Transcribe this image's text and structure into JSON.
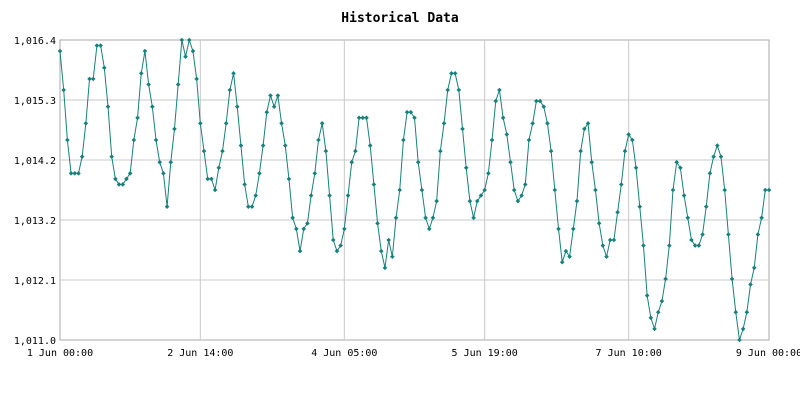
{
  "chart_data": {
    "type": "line",
    "title": "Historical Data",
    "xlabel": "",
    "ylabel": "",
    "grid": true,
    "legend": "none",
    "ylim": [
      1011.0,
      1016.4
    ],
    "xlim_hours": [
      0,
      192
    ],
    "y_ticks": [
      "1,011.0",
      "1,012.1",
      "1,013.2",
      "1,014.2",
      "1,015.3",
      "1,016.4"
    ],
    "x_ticks": [
      {
        "label": "1 Jun 00:00",
        "hour": 0
      },
      {
        "label": "2 Jun 14:00",
        "hour": 38
      },
      {
        "label": "4 Jun 05:00",
        "hour": 77
      },
      {
        "label": "5 Jun 19:00",
        "hour": 115
      },
      {
        "label": "7 Jun 10:00",
        "hour": 154
      },
      {
        "label": "9 Jun 00:00",
        "hour": 192
      }
    ],
    "series_color": "#17807a",
    "series": [
      {
        "x_hours": [
          0,
          1,
          2,
          3,
          4,
          5,
          6,
          7,
          8,
          9,
          10,
          11,
          12,
          13,
          14,
          15,
          16,
          17,
          18,
          19,
          20,
          21,
          22,
          23,
          24,
          25,
          26,
          27,
          28,
          29,
          30,
          31,
          32,
          33,
          34,
          35,
          36,
          37,
          38,
          39,
          40,
          41,
          42,
          43,
          44,
          45,
          46,
          47,
          48,
          49,
          50,
          51,
          52,
          53,
          54,
          55,
          56,
          57,
          58,
          59,
          60,
          61,
          62,
          63,
          64,
          65,
          66,
          67,
          68,
          69,
          70,
          71,
          72,
          73,
          74,
          75,
          76,
          77,
          78,
          79,
          80,
          81,
          82,
          83,
          84,
          85,
          86,
          87,
          88,
          89,
          90,
          91,
          92,
          93,
          94,
          95,
          96,
          97,
          98,
          99,
          100,
          101,
          102,
          103,
          104,
          105,
          106,
          107,
          108,
          109,
          110,
          111,
          112,
          113,
          114,
          115,
          116,
          117,
          118,
          119,
          120,
          121,
          122,
          123,
          124,
          125,
          126,
          127,
          128,
          129,
          130,
          131,
          132,
          133,
          134,
          135,
          136,
          137,
          138,
          139,
          140,
          141,
          142,
          143,
          144,
          145,
          146,
          147,
          148,
          149,
          150,
          151,
          152,
          153,
          154,
          155,
          156,
          157,
          158,
          159,
          160,
          161,
          162,
          163,
          164,
          165,
          166,
          167,
          168,
          169,
          170,
          171,
          172,
          173,
          174,
          175,
          176,
          177,
          178,
          179,
          180,
          181,
          182,
          183,
          184,
          185,
          186,
          187,
          188,
          189,
          190,
          191,
          192
        ],
        "values": [
          1016.2,
          1015.5,
          1014.6,
          1014.0,
          1014.0,
          1014.0,
          1014.3,
          1014.9,
          1015.7,
          1015.7,
          1016.3,
          1016.3,
          1015.9,
          1015.2,
          1014.3,
          1013.9,
          1013.8,
          1013.8,
          1013.9,
          1014.0,
          1014.6,
          1015.0,
          1015.8,
          1016.2,
          1015.6,
          1015.2,
          1014.6,
          1014.2,
          1014.0,
          1013.4,
          1014.2,
          1014.8,
          1015.6,
          1016.4,
          1016.1,
          1016.4,
          1016.2,
          1015.7,
          1014.9,
          1014.4,
          1013.9,
          1013.9,
          1013.7,
          1014.1,
          1014.4,
          1014.9,
          1015.5,
          1015.8,
          1015.2,
          1014.5,
          1013.8,
          1013.4,
          1013.4,
          1013.6,
          1014.0,
          1014.5,
          1015.1,
          1015.4,
          1015.2,
          1015.4,
          1014.9,
          1014.5,
          1013.9,
          1013.2,
          1013.0,
          1012.6,
          1013.0,
          1013.1,
          1013.6,
          1014.0,
          1014.6,
          1014.9,
          1014.4,
          1013.6,
          1012.8,
          1012.6,
          1012.7,
          1013.0,
          1013.6,
          1014.2,
          1014.4,
          1015.0,
          1015.0,
          1015.0,
          1014.5,
          1013.8,
          1013.1,
          1012.6,
          1012.3,
          1012.8,
          1012.5,
          1013.2,
          1013.7,
          1014.6,
          1015.1,
          1015.1,
          1015.0,
          1014.2,
          1013.7,
          1013.2,
          1013.0,
          1013.2,
          1013.5,
          1014.4,
          1014.9,
          1015.5,
          1015.8,
          1015.8,
          1015.5,
          1014.8,
          1014.1,
          1013.5,
          1013.2,
          1013.5,
          1013.6,
          1013.7,
          1014.0,
          1014.6,
          1015.3,
          1015.5,
          1015.0,
          1014.7,
          1014.2,
          1013.7,
          1013.5,
          1013.6,
          1013.8,
          1014.6,
          1014.9,
          1015.3,
          1015.3,
          1015.2,
          1014.9,
          1014.4,
          1013.7,
          1013.0,
          1012.4,
          1012.6,
          1012.5,
          1013.0,
          1013.5,
          1014.4,
          1014.8,
          1014.9,
          1014.2,
          1013.7,
          1013.1,
          1012.7,
          1012.5,
          1012.8,
          1012.8,
          1013.3,
          1013.8,
          1014.4,
          1014.7,
          1014.6,
          1014.1,
          1013.4,
          1012.7,
          1011.8,
          1011.4,
          1011.2,
          1011.5,
          1011.7,
          1012.1,
          1012.7,
          1013.7,
          1014.2,
          1014.1,
          1013.6,
          1013.2,
          1012.8,
          1012.7,
          1012.7,
          1012.9,
          1013.4,
          1014.0,
          1014.3,
          1014.5,
          1014.3,
          1013.7,
          1012.9,
          1012.1,
          1011.5,
          1011.0,
          1011.2,
          1011.5,
          1012.0,
          1012.3,
          1012.9,
          1013.2,
          1013.7,
          1013.7
        ]
      }
    ]
  }
}
